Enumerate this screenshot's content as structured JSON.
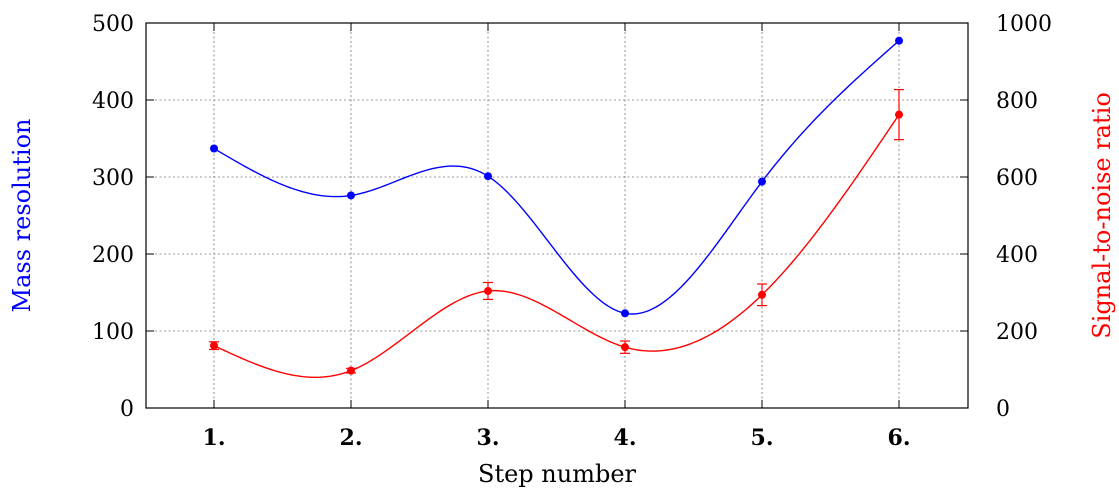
{
  "chart_data": {
    "type": "line",
    "categories": [
      "1.",
      "2.",
      "3.",
      "4.",
      "5.",
      "6."
    ],
    "xlabel": "Step number",
    "ylabel": "Mass resolution",
    "y2label": "Signal-to-noise ratio",
    "ylim": [
      0,
      500
    ],
    "y2lim": [
      0,
      1000
    ],
    "yticks": [
      0,
      100,
      200,
      300,
      400,
      500
    ],
    "y2ticks": [
      0,
      200,
      400,
      600,
      800,
      1000
    ],
    "grid": true,
    "series": [
      {
        "axis": "left",
        "color": "#0000ff",
        "values": [
          337,
          276,
          301,
          123,
          294,
          477
        ]
      },
      {
        "axis": "right",
        "color": "#ff0000",
        "values": [
          162,
          97,
          304,
          158,
          294,
          762
        ],
        "errors": [
          10,
          6,
          22,
          16,
          28,
          65
        ]
      }
    ]
  }
}
